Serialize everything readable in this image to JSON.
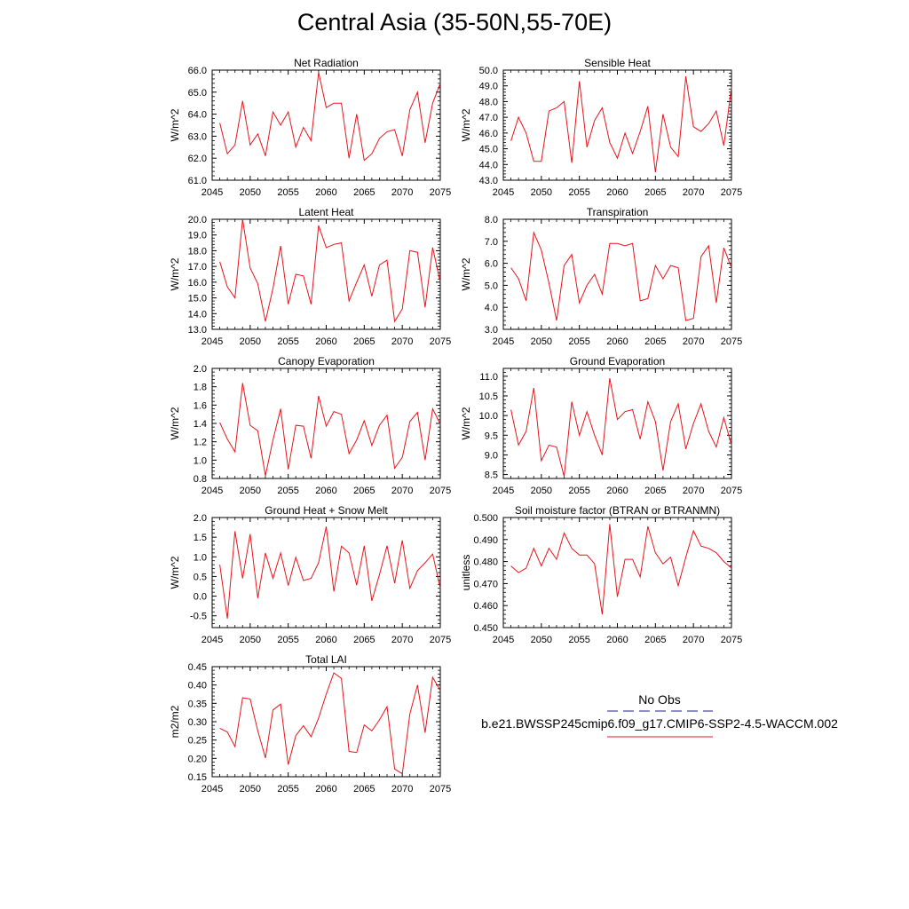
{
  "title": "Central Asia (35-50N,55-70E)",
  "colors": {
    "case": "#e8141b",
    "obs": "#1c1c8c"
  },
  "legend": {
    "items": [
      {
        "label": "No Obs",
        "style": "dashed",
        "color": "#1c1c8c"
      },
      {
        "label": "b.e21.BWSSP245cmip6.f09_g17.CMIP6-SSP2-4.5-WACCM.002",
        "style": "solid",
        "color": "#e8141b"
      }
    ]
  },
  "chart_data": [
    {
      "type": "line",
      "title": "Net Radiation",
      "ylabel": "W/m^2",
      "xlabel": "",
      "xlim": [
        2045,
        2075
      ],
      "ylim": [
        61.0,
        66.0
      ],
      "xticks": [
        2045,
        2050,
        2055,
        2060,
        2065,
        2070,
        2075
      ],
      "yticks": [
        "61.0",
        "62.0",
        "63.0",
        "64.0",
        "65.0",
        "66.0"
      ],
      "x": [
        2046,
        2047,
        2048,
        2049,
        2050,
        2051,
        2052,
        2053,
        2054,
        2055,
        2056,
        2057,
        2058,
        2059,
        2060,
        2061,
        2062,
        2063,
        2064,
        2065,
        2066,
        2067,
        2068,
        2069,
        2070,
        2071,
        2072,
        2073,
        2074,
        2075
      ],
      "values": [
        63.6,
        62.2,
        62.6,
        64.6,
        62.6,
        63.1,
        62.1,
        64.1,
        63.5,
        64.1,
        62.5,
        63.4,
        62.8,
        65.9,
        64.3,
        64.5,
        64.5,
        62.0,
        64.0,
        61.9,
        62.2,
        62.9,
        63.2,
        63.3,
        62.1,
        64.2,
        65.0,
        62.7,
        64.5,
        65.4
      ]
    },
    {
      "type": "line",
      "title": "Sensible Heat",
      "ylabel": "W/m^2",
      "xlabel": "",
      "xlim": [
        2045,
        2075
      ],
      "ylim": [
        43.0,
        50.0
      ],
      "xticks": [
        2045,
        2050,
        2055,
        2060,
        2065,
        2070,
        2075
      ],
      "yticks": [
        "43.0",
        "44.0",
        "45.0",
        "46.0",
        "47.0",
        "48.0",
        "49.0",
        "50.0"
      ],
      "x": [
        2046,
        2047,
        2048,
        2049,
        2050,
        2051,
        2052,
        2053,
        2054,
        2055,
        2056,
        2057,
        2058,
        2059,
        2060,
        2061,
        2062,
        2063,
        2064,
        2065,
        2066,
        2067,
        2068,
        2069,
        2070,
        2071,
        2072,
        2073,
        2074,
        2075
      ],
      "values": [
        45.5,
        47.0,
        46.0,
        44.2,
        44.2,
        47.4,
        47.6,
        48.0,
        44.1,
        49.3,
        45.1,
        46.8,
        47.6,
        45.4,
        44.4,
        46.0,
        44.7,
        46.1,
        47.7,
        43.5,
        47.2,
        45.1,
        44.5,
        49.6,
        46.4,
        46.1,
        46.6,
        47.4,
        45.2,
        48.9
      ]
    },
    {
      "type": "line",
      "title": "Latent Heat",
      "ylabel": "W/m^2",
      "xlabel": "",
      "xlim": [
        2045,
        2075
      ],
      "ylim": [
        13.0,
        20.0
      ],
      "xticks": [
        2045,
        2050,
        2055,
        2060,
        2065,
        2070,
        2075
      ],
      "yticks": [
        "13.0",
        "14.0",
        "15.0",
        "16.0",
        "17.0",
        "18.0",
        "19.0",
        "20.0"
      ],
      "x": [
        2046,
        2047,
        2048,
        2049,
        2050,
        2051,
        2052,
        2053,
        2054,
        2055,
        2056,
        2057,
        2058,
        2059,
        2060,
        2061,
        2062,
        2063,
        2064,
        2065,
        2066,
        2067,
        2068,
        2069,
        2070,
        2071,
        2072,
        2073,
        2074,
        2075
      ],
      "values": [
        17.3,
        15.7,
        15.0,
        20.0,
        16.9,
        15.9,
        13.5,
        15.6,
        18.3,
        14.6,
        16.5,
        16.4,
        14.6,
        19.6,
        18.2,
        18.4,
        18.5,
        14.8,
        16.0,
        17.1,
        15.1,
        17.1,
        17.4,
        13.5,
        14.3,
        18.0,
        17.9,
        14.4,
        18.2,
        16.0
      ]
    },
    {
      "type": "line",
      "title": "Transpiration",
      "ylabel": "W/m^2",
      "xlabel": "",
      "xlim": [
        2045,
        2075
      ],
      "ylim": [
        3.0,
        8.0
      ],
      "xticks": [
        2045,
        2050,
        2055,
        2060,
        2065,
        2070,
        2075
      ],
      "yticks": [
        "3.0",
        "4.0",
        "5.0",
        "6.0",
        "7.0",
        "8.0"
      ],
      "x": [
        2046,
        2047,
        2048,
        2049,
        2050,
        2051,
        2052,
        2053,
        2054,
        2055,
        2056,
        2057,
        2058,
        2059,
        2060,
        2061,
        2062,
        2063,
        2064,
        2065,
        2066,
        2067,
        2068,
        2069,
        2070,
        2071,
        2072,
        2073,
        2074,
        2075
      ],
      "values": [
        5.8,
        5.3,
        4.3,
        7.4,
        6.6,
        5.1,
        3.4,
        5.9,
        6.4,
        4.2,
        5.0,
        5.5,
        4.6,
        6.9,
        6.9,
        6.8,
        6.9,
        4.3,
        4.4,
        5.9,
        5.3,
        5.9,
        5.8,
        3.4,
        3.5,
        6.3,
        6.8,
        4.2,
        6.7,
        5.8
      ]
    },
    {
      "type": "line",
      "title": "Canopy Evaporation",
      "ylabel": "W/m^2",
      "xlabel": "",
      "xlim": [
        2045,
        2075
      ],
      "ylim": [
        0.8,
        2.0
      ],
      "xticks": [
        2045,
        2050,
        2055,
        2060,
        2065,
        2070,
        2075
      ],
      "yticks": [
        "0.8",
        "1.0",
        "1.2",
        "1.4",
        "1.6",
        "1.8",
        "2.0"
      ],
      "x": [
        2046,
        2047,
        2048,
        2049,
        2050,
        2051,
        2052,
        2053,
        2054,
        2055,
        2056,
        2057,
        2058,
        2059,
        2060,
        2061,
        2062,
        2063,
        2064,
        2065,
        2066,
        2067,
        2068,
        2069,
        2070,
        2071,
        2072,
        2073,
        2074,
        2075
      ],
      "values": [
        1.41,
        1.23,
        1.09,
        1.84,
        1.38,
        1.32,
        0.83,
        1.22,
        1.56,
        0.9,
        1.38,
        1.37,
        1.02,
        1.7,
        1.37,
        1.53,
        1.5,
        1.07,
        1.22,
        1.43,
        1.16,
        1.38,
        1.49,
        0.91,
        1.03,
        1.42,
        1.52,
        1.0,
        1.56,
        1.39
      ]
    },
    {
      "type": "line",
      "title": "Ground Evaporation",
      "ylabel": "W/m^2",
      "xlabel": "",
      "xlim": [
        2045,
        2075
      ],
      "ylim": [
        8.4,
        11.2
      ],
      "xticks": [
        2045,
        2050,
        2055,
        2060,
        2065,
        2070,
        2075
      ],
      "yticks": [
        "8.5",
        "9.0",
        "9.5",
        "10.0",
        "10.5",
        "11.0"
      ],
      "x": [
        2046,
        2047,
        2048,
        2049,
        2050,
        2051,
        2052,
        2053,
        2054,
        2055,
        2056,
        2057,
        2058,
        2059,
        2060,
        2061,
        2062,
        2063,
        2064,
        2065,
        2066,
        2067,
        2068,
        2069,
        2070,
        2071,
        2072,
        2073,
        2074,
        2075
      ],
      "values": [
        10.15,
        9.25,
        9.6,
        10.7,
        8.85,
        9.25,
        9.2,
        8.45,
        10.35,
        9.5,
        10.1,
        9.5,
        9.0,
        10.95,
        9.9,
        10.1,
        10.15,
        9.4,
        10.35,
        9.85,
        8.6,
        9.85,
        10.3,
        9.15,
        9.8,
        10.3,
        9.6,
        9.2,
        9.95,
        9.25
      ]
    },
    {
      "type": "line",
      "title": "Ground Heat + Snow Melt",
      "ylabel": "W/m^2",
      "xlabel": "",
      "xlim": [
        2045,
        2075
      ],
      "ylim": [
        -0.8,
        2.0
      ],
      "xticks": [
        2045,
        2050,
        2055,
        2060,
        2065,
        2070,
        2075
      ],
      "yticks": [
        "-0.5",
        "0.0",
        "0.5",
        "1.0",
        "1.5",
        "2.0"
      ],
      "x": [
        2046,
        2047,
        2048,
        2049,
        2050,
        2051,
        2052,
        2053,
        2054,
        2055,
        2056,
        2057,
        2058,
        2059,
        2060,
        2061,
        2062,
        2063,
        2064,
        2065,
        2066,
        2067,
        2068,
        2069,
        2070,
        2071,
        2072,
        2073,
        2074,
        2075
      ],
      "values": [
        0.8,
        -0.57,
        1.65,
        0.45,
        1.58,
        -0.05,
        1.1,
        0.45,
        1.1,
        0.27,
        0.99,
        0.4,
        0.45,
        0.85,
        1.77,
        0.12,
        1.27,
        1.1,
        0.28,
        1.28,
        -0.12,
        0.55,
        1.28,
        0.33,
        1.42,
        0.2,
        0.65,
        0.85,
        1.07,
        0.2
      ]
    },
    {
      "type": "line",
      "title": "Soil moisture factor (BTRAN or BTRANMN)",
      "ylabel": "unitless",
      "xlabel": "",
      "xlim": [
        2045,
        2075
      ],
      "ylim": [
        0.45,
        0.5
      ],
      "xticks": [
        2045,
        2050,
        2055,
        2060,
        2065,
        2070,
        2075
      ],
      "yticks": [
        "0.450",
        "0.460",
        "0.470",
        "0.480",
        "0.490",
        "0.500"
      ],
      "x": [
        2046,
        2047,
        2048,
        2049,
        2050,
        2051,
        2052,
        2053,
        2054,
        2055,
        2056,
        2057,
        2058,
        2059,
        2060,
        2061,
        2062,
        2063,
        2064,
        2065,
        2066,
        2067,
        2068,
        2069,
        2070,
        2071,
        2072,
        2073,
        2074,
        2075
      ],
      "values": [
        0.478,
        0.475,
        0.477,
        0.486,
        0.478,
        0.486,
        0.481,
        0.493,
        0.486,
        0.483,
        0.483,
        0.479,
        0.456,
        0.497,
        0.464,
        0.481,
        0.481,
        0.473,
        0.496,
        0.484,
        0.479,
        0.482,
        0.469,
        0.482,
        0.494,
        0.487,
        0.486,
        0.484,
        0.48,
        0.477
      ]
    },
    {
      "type": "line",
      "title": "Total LAI",
      "ylabel": "m2/m2",
      "xlabel": "",
      "xlim": [
        2045,
        2075
      ],
      "ylim": [
        0.15,
        0.45
      ],
      "xticks": [
        2045,
        2050,
        2055,
        2060,
        2065,
        2070,
        2075
      ],
      "yticks": [
        "0.15",
        "0.20",
        "0.25",
        "0.30",
        "0.35",
        "0.40",
        "0.45"
      ],
      "x": [
        2046,
        2047,
        2048,
        2049,
        2050,
        2051,
        2052,
        2053,
        2054,
        2055,
        2056,
        2057,
        2058,
        2059,
        2060,
        2061,
        2062,
        2063,
        2064,
        2065,
        2066,
        2067,
        2068,
        2069,
        2070,
        2071,
        2072,
        2073,
        2074,
        2075
      ],
      "values": [
        0.282,
        0.272,
        0.232,
        0.365,
        0.362,
        0.275,
        0.201,
        0.332,
        0.348,
        0.183,
        0.262,
        0.289,
        0.259,
        0.31,
        0.375,
        0.433,
        0.418,
        0.219,
        0.216,
        0.291,
        0.275,
        0.305,
        0.341,
        0.171,
        0.158,
        0.321,
        0.4,
        0.27,
        0.421,
        0.385
      ]
    }
  ]
}
